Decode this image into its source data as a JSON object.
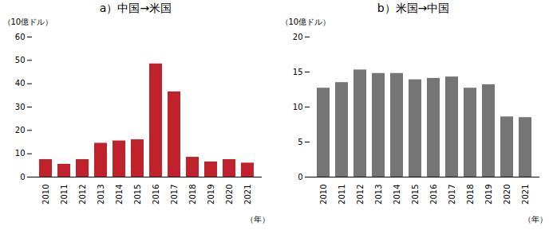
{
  "chart_data": [
    {
      "type": "bar",
      "title": "a）中国→米国",
      "ylabel": "（10億ドル）",
      "xlabel": "（年）",
      "categories": [
        "2010",
        "2011",
        "2012",
        "2013",
        "2014",
        "2015",
        "2016",
        "2017",
        "2018",
        "2019",
        "2020",
        "2021"
      ],
      "values": [
        7.5,
        5.5,
        7.5,
        14.5,
        15.5,
        16.0,
        48.5,
        36.5,
        8.5,
        6.5,
        7.5,
        6.0
      ],
      "color": "#c0222c",
      "ylim": [
        0,
        60
      ],
      "yticks": [
        0,
        10,
        20,
        30,
        40,
        50,
        60
      ],
      "grid": false
    },
    {
      "type": "bar",
      "title": "b）米国→中国",
      "ylabel": "（10億ドル）",
      "xlabel": "（年）",
      "categories": [
        "2010",
        "2011",
        "2012",
        "2013",
        "2014",
        "2015",
        "2016",
        "2017",
        "2018",
        "2019",
        "2020",
        "2021"
      ],
      "values": [
        12.7,
        13.5,
        15.3,
        14.8,
        14.8,
        13.9,
        14.1,
        14.3,
        12.7,
        13.2,
        8.6,
        8.5
      ],
      "color": "#757575",
      "ylim": [
        0,
        20
      ],
      "yticks": [
        0,
        5,
        10,
        15,
        20
      ],
      "grid": false
    }
  ]
}
